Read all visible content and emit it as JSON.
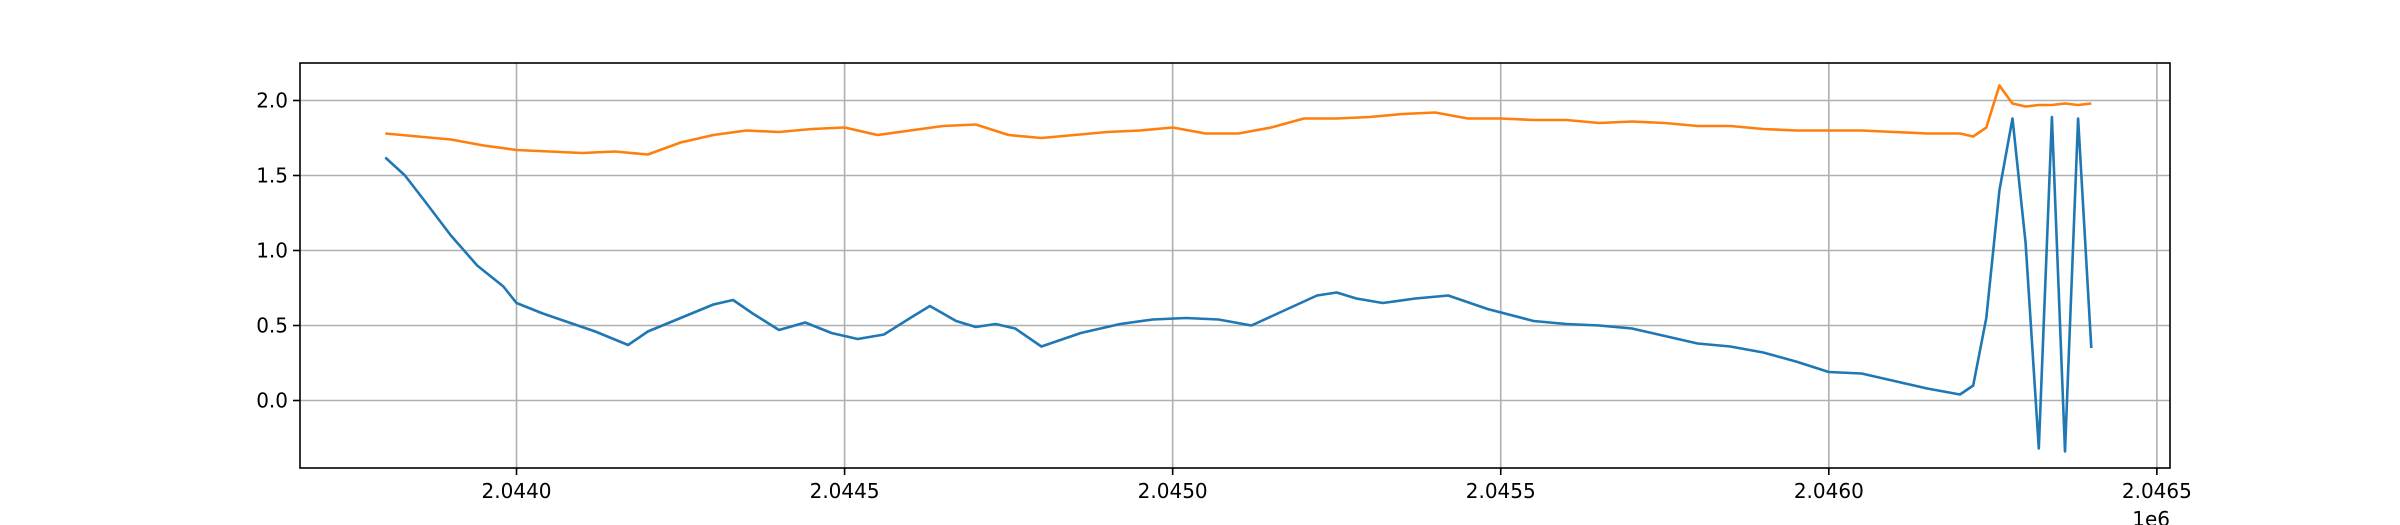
{
  "chart_data": {
    "type": "line",
    "title": "",
    "xlabel": "",
    "ylabel": "",
    "x_offset_label": "1e6",
    "xlim": [
      2.04367,
      2.04652
    ],
    "ylim": [
      -0.45,
      2.25
    ],
    "grid": true,
    "legend": "none",
    "x_ticks": [
      2.044,
      2.0445,
      2.045,
      2.0455,
      2.046,
      2.0465
    ],
    "x_tick_labels": [
      "2.0440",
      "2.0445",
      "2.0450",
      "2.0455",
      "2.0460",
      "2.0465"
    ],
    "y_ticks": [
      0.0,
      0.5,
      1.0,
      1.5,
      2.0
    ],
    "y_tick_labels": [
      "0.0",
      "0.5",
      "1.0",
      "1.5",
      "2.0"
    ],
    "series": [
      {
        "color": "#1f77b4",
        "x": [
          2.0438,
          2.04383,
          2.04386,
          2.0439,
          2.04394,
          2.04398,
          2.044,
          2.04404,
          2.04408,
          2.04412,
          2.04417,
          2.0442,
          2.04425,
          2.0443,
          2.04433,
          2.04436,
          2.0444,
          2.04444,
          2.04448,
          2.04452,
          2.04456,
          2.0446,
          2.04463,
          2.04467,
          2.0447,
          2.04473,
          2.04476,
          2.0448,
          2.04486,
          2.04492,
          2.04497,
          2.04502,
          2.04507,
          2.04512,
          2.04517,
          2.04522,
          2.04525,
          2.04528,
          2.04532,
          2.04537,
          2.04542,
          2.04548,
          2.04555,
          2.0456,
          2.04565,
          2.0457,
          2.04575,
          2.0458,
          2.04585,
          2.0459,
          2.04595,
          2.046,
          2.04605,
          2.0461,
          2.04615,
          2.0462,
          2.04622,
          2.04624,
          2.04626,
          2.04628,
          2.0463,
          2.04632,
          2.04634,
          2.04636,
          2.04638,
          2.0464
        ],
        "y": [
          1.62,
          1.5,
          1.33,
          1.1,
          0.9,
          0.76,
          0.65,
          0.58,
          0.52,
          0.46,
          0.37,
          0.46,
          0.55,
          0.64,
          0.67,
          0.58,
          0.47,
          0.52,
          0.45,
          0.41,
          0.44,
          0.55,
          0.63,
          0.53,
          0.49,
          0.51,
          0.48,
          0.36,
          0.45,
          0.51,
          0.54,
          0.55,
          0.54,
          0.5,
          0.6,
          0.7,
          0.72,
          0.68,
          0.65,
          0.68,
          0.7,
          0.61,
          0.53,
          0.51,
          0.5,
          0.48,
          0.43,
          0.38,
          0.36,
          0.32,
          0.26,
          0.19,
          0.18,
          0.13,
          0.08,
          0.04,
          0.1,
          0.55,
          1.4,
          1.88,
          1.05,
          -0.32,
          1.89,
          -0.34,
          1.88,
          0.35
        ]
      },
      {
        "color": "#ff7f0e",
        "x": [
          2.0438,
          2.04385,
          2.0439,
          2.04395,
          2.044,
          2.04405,
          2.0441,
          2.04415,
          2.0442,
          2.04425,
          2.0443,
          2.04435,
          2.0444,
          2.04445,
          2.0445,
          2.04455,
          2.0446,
          2.04465,
          2.0447,
          2.04475,
          2.0448,
          2.04485,
          2.0449,
          2.04495,
          2.045,
          2.04505,
          2.0451,
          2.04515,
          2.0452,
          2.04525,
          2.0453,
          2.04535,
          2.0454,
          2.04545,
          2.0455,
          2.04555,
          2.0456,
          2.04565,
          2.0457,
          2.04575,
          2.0458,
          2.04585,
          2.0459,
          2.04595,
          2.046,
          2.04605,
          2.0461,
          2.04615,
          2.0462,
          2.04622,
          2.04624,
          2.04626,
          2.04628,
          2.0463,
          2.04632,
          2.04634,
          2.04636,
          2.04638,
          2.0464
        ],
        "y": [
          1.78,
          1.76,
          1.74,
          1.7,
          1.67,
          1.66,
          1.65,
          1.66,
          1.64,
          1.72,
          1.77,
          1.8,
          1.79,
          1.81,
          1.82,
          1.77,
          1.8,
          1.83,
          1.84,
          1.77,
          1.75,
          1.77,
          1.79,
          1.8,
          1.82,
          1.78,
          1.78,
          1.82,
          1.88,
          1.88,
          1.89,
          1.91,
          1.92,
          1.88,
          1.88,
          1.87,
          1.87,
          1.85,
          1.86,
          1.85,
          1.83,
          1.83,
          1.81,
          1.8,
          1.8,
          1.8,
          1.79,
          1.78,
          1.78,
          1.76,
          1.82,
          2.1,
          1.98,
          1.96,
          1.97,
          1.97,
          1.98,
          1.97,
          1.98
        ]
      }
    ]
  }
}
